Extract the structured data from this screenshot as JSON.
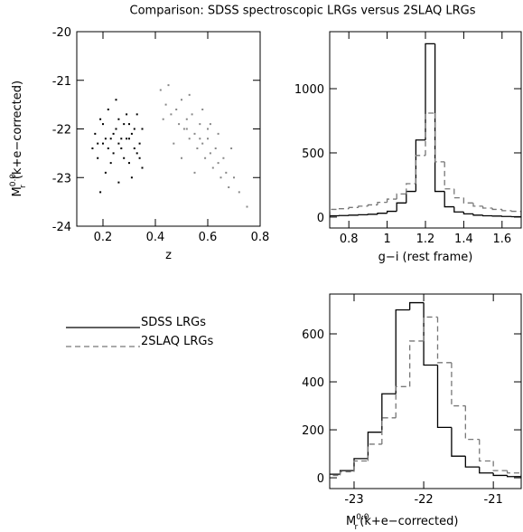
{
  "title": "Comparison: SDSS spectroscopic LRGs versus 2SLAQ LRGs",
  "chart_data": [
    {
      "type": "scatter",
      "xlabel": "z",
      "ylabel": {
        "symbol": "M",
        "sub": "r",
        "sup": "0.0",
        "text": " (k+e−corrected)"
      },
      "xlim": [
        0.1,
        0.8
      ],
      "xticks": [
        0.2,
        0.4,
        0.6,
        0.8
      ],
      "ylim": [
        -24,
        -20
      ],
      "yticks": [
        -20,
        -21,
        -22,
        -23,
        -24
      ],
      "series": [
        {
          "color": "#000000",
          "x": [
            0.17,
            0.18,
            0.19,
            0.2,
            0.21,
            0.22,
            0.23,
            0.24,
            0.25,
            0.26,
            0.27,
            0.28,
            0.29,
            0.3,
            0.31,
            0.32,
            0.33,
            0.34,
            0.35,
            0.18,
            0.2,
            0.22,
            0.24,
            0.26,
            0.28,
            0.3,
            0.32,
            0.34,
            0.19,
            0.25,
            0.31,
            0.27,
            0.23,
            0.29,
            0.33,
            0.16,
            0.21,
            0.26,
            0.3,
            0.35
          ],
          "values": [
            -22.1,
            -22.6,
            -21.8,
            -22.3,
            -22.9,
            -21.6,
            -22.2,
            -22.5,
            -22.0,
            -23.1,
            -22.4,
            -21.9,
            -22.2,
            -22.7,
            -22.1,
            -22.4,
            -21.7,
            -22.3,
            -22.0,
            -22.3,
            -21.9,
            -22.4,
            -22.1,
            -21.8,
            -22.6,
            -22.2,
            -22.0,
            -22.6,
            -23.3,
            -21.4,
            -23.0,
            -22.2,
            -22.7,
            -21.7,
            -22.5,
            -22.4,
            -22.2,
            -22.3,
            -21.9,
            -22.8
          ]
        },
        {
          "color": "#888888",
          "x": [
            0.42,
            0.44,
            0.45,
            0.46,
            0.48,
            0.49,
            0.5,
            0.51,
            0.52,
            0.53,
            0.54,
            0.55,
            0.56,
            0.57,
            0.58,
            0.59,
            0.6,
            0.61,
            0.62,
            0.63,
            0.64,
            0.65,
            0.66,
            0.67,
            0.68,
            0.7,
            0.72,
            0.47,
            0.5,
            0.53,
            0.55,
            0.58,
            0.61,
            0.64,
            0.69,
            0.52,
            0.57,
            0.6,
            0.43,
            0.75
          ],
          "values": [
            -21.2,
            -21.5,
            -21.1,
            -21.7,
            -21.6,
            -21.9,
            -21.4,
            -22.0,
            -21.8,
            -22.2,
            -21.7,
            -22.1,
            -22.4,
            -21.9,
            -22.3,
            -22.6,
            -22.2,
            -22.5,
            -22.8,
            -22.4,
            -22.7,
            -23.0,
            -22.6,
            -22.9,
            -23.2,
            -23.0,
            -23.3,
            -22.3,
            -22.6,
            -21.3,
            -22.9,
            -21.6,
            -21.9,
            -22.1,
            -22.4,
            -22.0,
            -22.2,
            -22.0,
            -21.8,
            -23.6
          ]
        }
      ]
    },
    {
      "type": "histogram",
      "xlabel": "g−i (rest frame)",
      "xlim": [
        0.7,
        1.7
      ],
      "xticks": [
        0.8,
        1,
        1.2,
        1.4,
        1.6
      ],
      "ylim": [
        -85,
        1444
      ],
      "yticks": [
        0,
        500,
        1000
      ],
      "bins": [
        0.7,
        0.75,
        0.8,
        0.85,
        0.9,
        0.95,
        1.0,
        1.05,
        1.1,
        1.15,
        1.2,
        1.25,
        1.3,
        1.35,
        1.4,
        1.45,
        1.5,
        1.55,
        1.6,
        1.65,
        1.7
      ],
      "series": [
        {
          "name": "SDSS LRGs",
          "color": "#000000",
          "dash": false,
          "values": [
            10,
            12,
            15,
            18,
            22,
            30,
            45,
            110,
            200,
            600,
            1350,
            200,
            80,
            40,
            25,
            15,
            10,
            8,
            5,
            3
          ]
        },
        {
          "name": "2SLAQ LRGs",
          "color": "#777777",
          "dash": true,
          "values": [
            60,
            65,
            75,
            85,
            95,
            115,
            140,
            180,
            260,
            480,
            810,
            430,
            220,
            150,
            110,
            85,
            70,
            60,
            50,
            45
          ]
        }
      ]
    },
    {
      "type": "histogram",
      "xlabel": {
        "symbol": "M",
        "sub": "r",
        "sup": "0.0",
        "text": "(k+e−corrected)"
      },
      "xlim": [
        -23.35,
        -20.6
      ],
      "xticks": [
        -23,
        -22,
        -21
      ],
      "ylim": [
        -45,
        766
      ],
      "yticks": [
        0,
        200,
        400,
        600
      ],
      "bins": [
        -23.4,
        -23.2,
        -23.0,
        -22.8,
        -22.6,
        -22.4,
        -22.2,
        -22.0,
        -21.8,
        -21.6,
        -21.4,
        -21.2,
        -21.0,
        -20.8,
        -20.6
      ],
      "series": [
        {
          "color": "#000000",
          "dash": false,
          "values": [
            15,
            30,
            80,
            190,
            350,
            700,
            730,
            470,
            210,
            90,
            45,
            20,
            10,
            5
          ]
        },
        {
          "color": "#777777",
          "dash": true,
          "values": [
            10,
            25,
            70,
            140,
            250,
            380,
            570,
            670,
            480,
            300,
            160,
            70,
            30,
            20
          ]
        }
      ]
    }
  ]
}
